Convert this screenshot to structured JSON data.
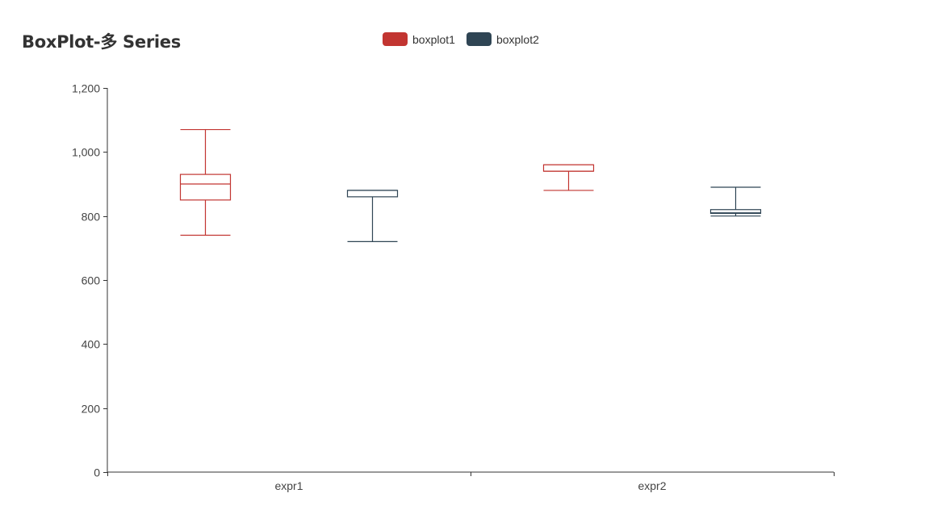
{
  "chart_data": {
    "type": "boxplot",
    "title": "BoxPlot-多 Series",
    "categories": [
      "expr1",
      "expr2"
    ],
    "ylim": [
      0,
      1200
    ],
    "yticks": [
      0,
      200,
      400,
      600,
      800,
      1000,
      1200
    ],
    "ytick_labels": [
      "0",
      "200",
      "400",
      "600",
      "800",
      "1,000",
      "1,200"
    ],
    "legend_position": "top-center",
    "grid": false,
    "series": [
      {
        "name": "boxplot1",
        "color": "#c23531",
        "boxes": [
          {
            "min": 740,
            "q1": 850,
            "median": 900,
            "q3": 930,
            "max": 1070
          },
          {
            "min": 880,
            "q1": 940,
            "median": 940,
            "q3": 960,
            "max": 960
          }
        ]
      },
      {
        "name": "boxplot2",
        "color": "#2f4554",
        "boxes": [
          {
            "min": 720,
            "q1": 860,
            "median": 880,
            "q3": 880,
            "max": 880
          },
          {
            "min": 800,
            "q1": 808,
            "median": 810,
            "q3": 820,
            "max": 890
          }
        ]
      }
    ]
  }
}
